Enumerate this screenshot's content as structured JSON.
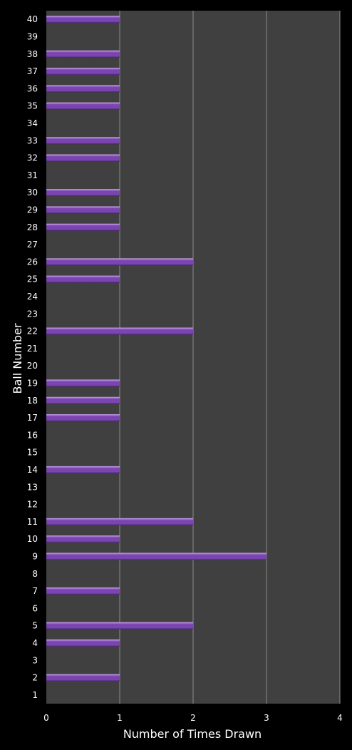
{
  "chart_data": {
    "type": "bar",
    "orientation": "horizontal",
    "title": "",
    "xlabel": "Number of Times Drawn",
    "ylabel": "Ball Number",
    "xlim": [
      0,
      4
    ],
    "x_ticks": [
      "0",
      "1",
      "2",
      "3",
      "4"
    ],
    "grid": true,
    "legend": "none",
    "colors": {
      "background": "#000000",
      "plot_area": "#404040",
      "gridline": "#8c8c8c",
      "bar": "#7a45b0",
      "bar_highlight": "#c9a6ee",
      "bar_shadow": "#452268",
      "text": "#ffffff"
    },
    "categories": [
      "1",
      "2",
      "3",
      "4",
      "5",
      "6",
      "7",
      "8",
      "9",
      "10",
      "11",
      "12",
      "13",
      "14",
      "15",
      "16",
      "17",
      "18",
      "19",
      "20",
      "21",
      "22",
      "23",
      "24",
      "25",
      "26",
      "27",
      "28",
      "29",
      "30",
      "31",
      "32",
      "33",
      "34",
      "35",
      "36",
      "37",
      "38",
      "39",
      "40"
    ],
    "values": [
      0,
      1,
      0,
      1,
      2,
      0,
      1,
      0,
      3,
      1,
      2,
      0,
      0,
      1,
      0,
      0,
      1,
      1,
      1,
      0,
      0,
      2,
      0,
      0,
      1,
      2,
      0,
      1,
      1,
      1,
      0,
      1,
      1,
      0,
      1,
      1,
      1,
      1,
      0,
      1
    ]
  }
}
